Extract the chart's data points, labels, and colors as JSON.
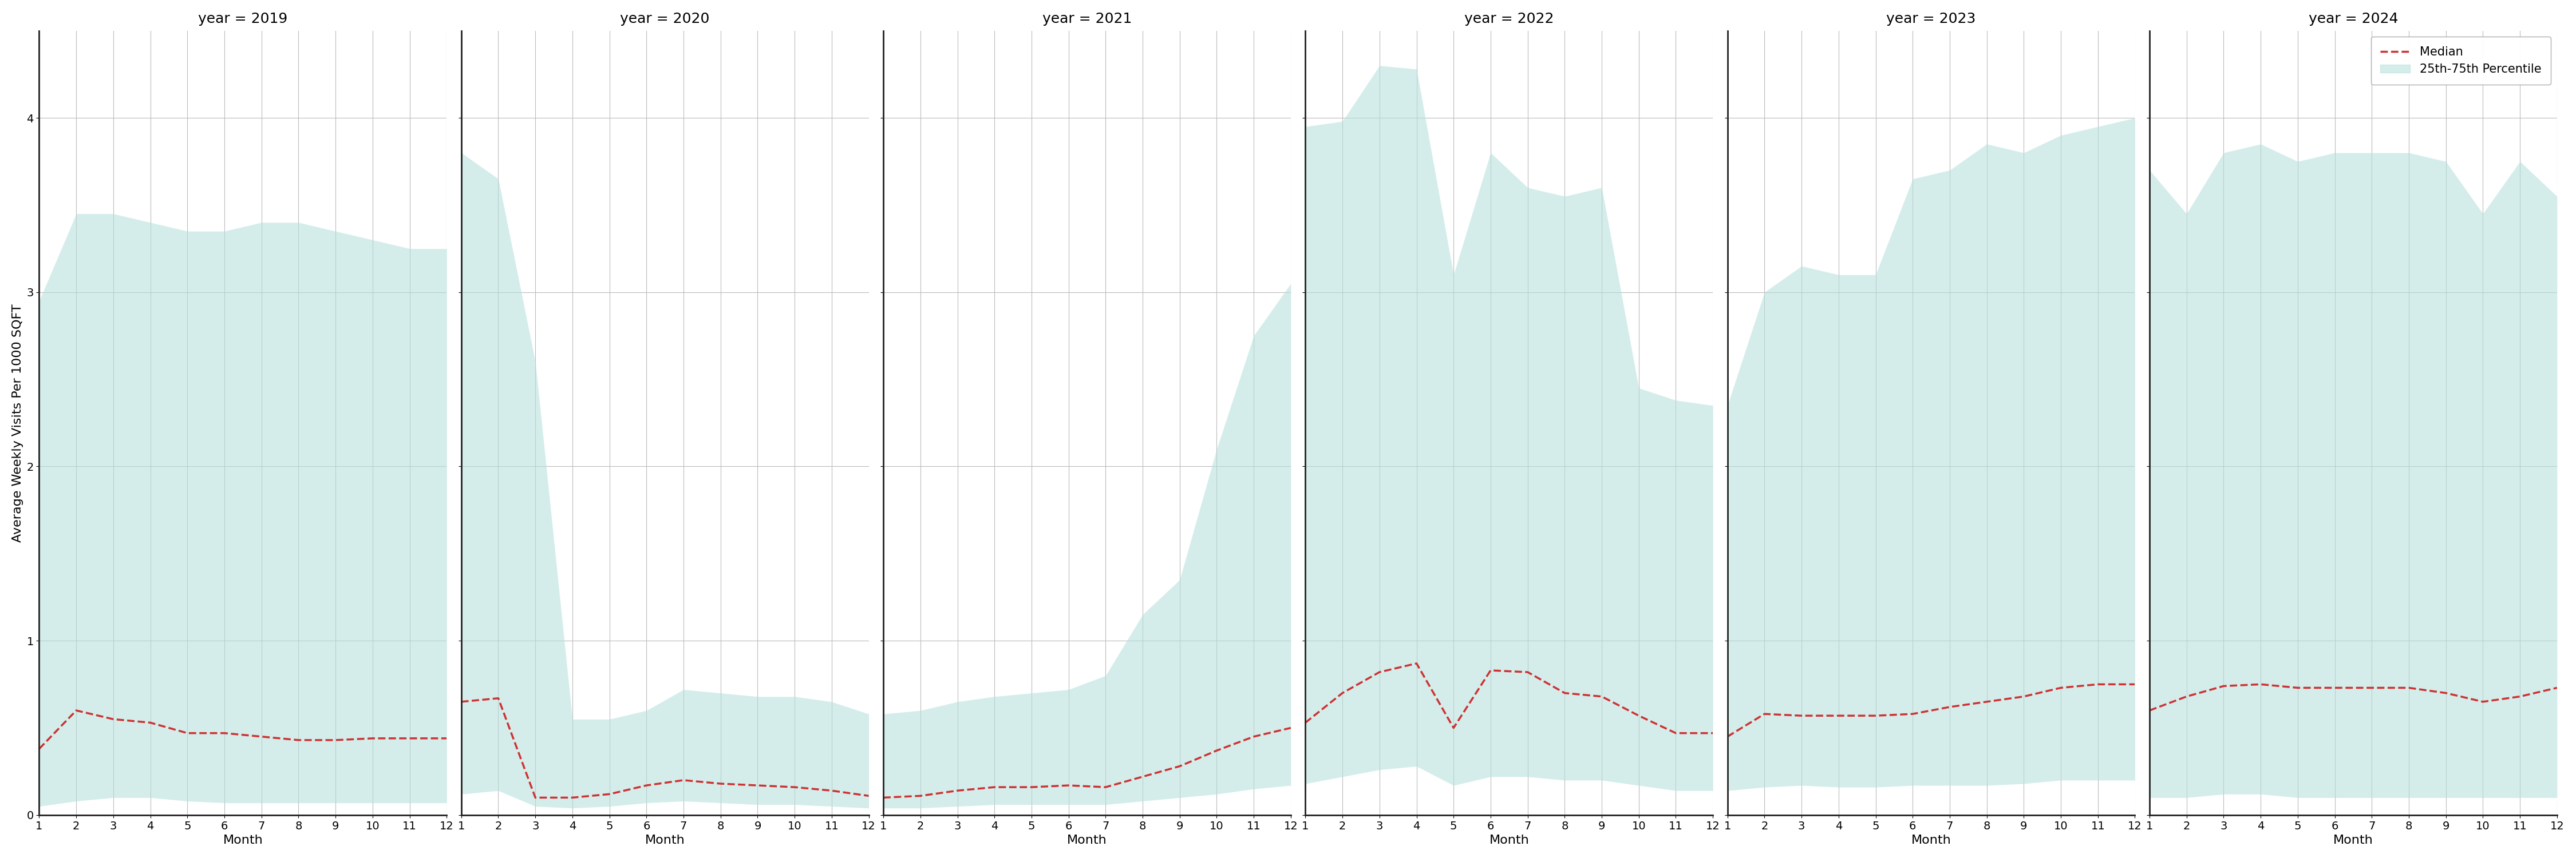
{
  "years": [
    2019,
    2020,
    2021,
    2022,
    2023,
    2024
  ],
  "months": [
    1,
    2,
    3,
    4,
    5,
    6,
    7,
    8,
    9,
    10,
    11,
    12
  ],
  "median": {
    "2019": [
      0.38,
      0.6,
      0.55,
      0.53,
      0.47,
      0.47,
      0.45,
      0.43,
      0.43,
      0.44,
      0.44,
      0.44
    ],
    "2020": [
      0.65,
      0.67,
      0.1,
      0.1,
      0.12,
      0.17,
      0.2,
      0.18,
      0.17,
      0.16,
      0.14,
      0.11
    ],
    "2021": [
      0.1,
      0.11,
      0.14,
      0.16,
      0.16,
      0.17,
      0.16,
      0.22,
      0.28,
      0.37,
      0.45,
      0.5
    ],
    "2022": [
      0.53,
      0.7,
      0.82,
      0.87,
      0.5,
      0.83,
      0.82,
      0.7,
      0.68,
      0.57,
      0.47,
      0.47
    ],
    "2023": [
      0.45,
      0.58,
      0.57,
      0.57,
      0.57,
      0.58,
      0.62,
      0.65,
      0.68,
      0.73,
      0.75,
      0.75
    ],
    "2024": [
      0.6,
      0.68,
      0.74,
      0.75,
      0.73,
      0.73,
      0.73,
      0.73,
      0.7,
      0.65,
      0.68,
      0.73
    ]
  },
  "p25": {
    "2019": [
      0.05,
      0.08,
      0.1,
      0.1,
      0.08,
      0.07,
      0.07,
      0.07,
      0.07,
      0.07,
      0.07,
      0.07
    ],
    "2020": [
      0.12,
      0.14,
      0.05,
      0.04,
      0.05,
      0.07,
      0.08,
      0.07,
      0.06,
      0.06,
      0.05,
      0.04
    ],
    "2021": [
      0.04,
      0.04,
      0.05,
      0.06,
      0.06,
      0.06,
      0.06,
      0.08,
      0.1,
      0.12,
      0.15,
      0.17
    ],
    "2022": [
      0.18,
      0.22,
      0.26,
      0.28,
      0.17,
      0.22,
      0.22,
      0.2,
      0.2,
      0.17,
      0.14,
      0.14
    ],
    "2023": [
      0.14,
      0.16,
      0.17,
      0.16,
      0.16,
      0.17,
      0.17,
      0.17,
      0.18,
      0.2,
      0.2,
      0.2
    ],
    "2024": [
      0.1,
      0.1,
      0.12,
      0.12,
      0.1,
      0.1,
      0.1,
      0.1,
      0.1,
      0.1,
      0.1,
      0.1
    ]
  },
  "p75": {
    "2019": [
      2.95,
      3.45,
      3.45,
      3.4,
      3.35,
      3.35,
      3.4,
      3.4,
      3.35,
      3.3,
      3.25,
      3.25
    ],
    "2020": [
      3.8,
      3.65,
      2.6,
      0.55,
      0.55,
      0.6,
      0.72,
      0.7,
      0.68,
      0.68,
      0.65,
      0.58
    ],
    "2021": [
      0.58,
      0.6,
      0.65,
      0.68,
      0.7,
      0.72,
      0.8,
      1.15,
      1.35,
      2.1,
      2.75,
      3.05
    ],
    "2022": [
      3.95,
      3.98,
      4.3,
      4.28,
      3.1,
      3.8,
      3.6,
      3.55,
      3.6,
      2.45,
      2.38,
      2.35
    ],
    "2023": [
      2.35,
      3.0,
      3.15,
      3.1,
      3.1,
      3.65,
      3.7,
      3.85,
      3.8,
      3.9,
      3.95,
      4.0
    ],
    "2024": [
      3.7,
      3.45,
      3.8,
      3.85,
      3.75,
      3.8,
      3.8,
      3.8,
      3.75,
      3.45,
      3.75,
      3.55
    ]
  },
  "ylim": [
    0,
    4.5
  ],
  "yticks": [
    0,
    1,
    2,
    3,
    4
  ],
  "fill_color": "#b2dfdb",
  "fill_alpha": 0.55,
  "line_color": "#cd3333",
  "line_style": "--",
  "line_width": 2.5,
  "ylabel": "Average Weekly Visits Per 1000 SQFT",
  "xlabel": "Month",
  "legend_median": "Median",
  "legend_fill": "25th-75th Percentile",
  "background_color": "#ffffff",
  "grid_color": "#bbbbbb",
  "spine_color": "#222222",
  "title_fontsize": 18,
  "label_fontsize": 16,
  "tick_fontsize": 14,
  "legend_fontsize": 15
}
